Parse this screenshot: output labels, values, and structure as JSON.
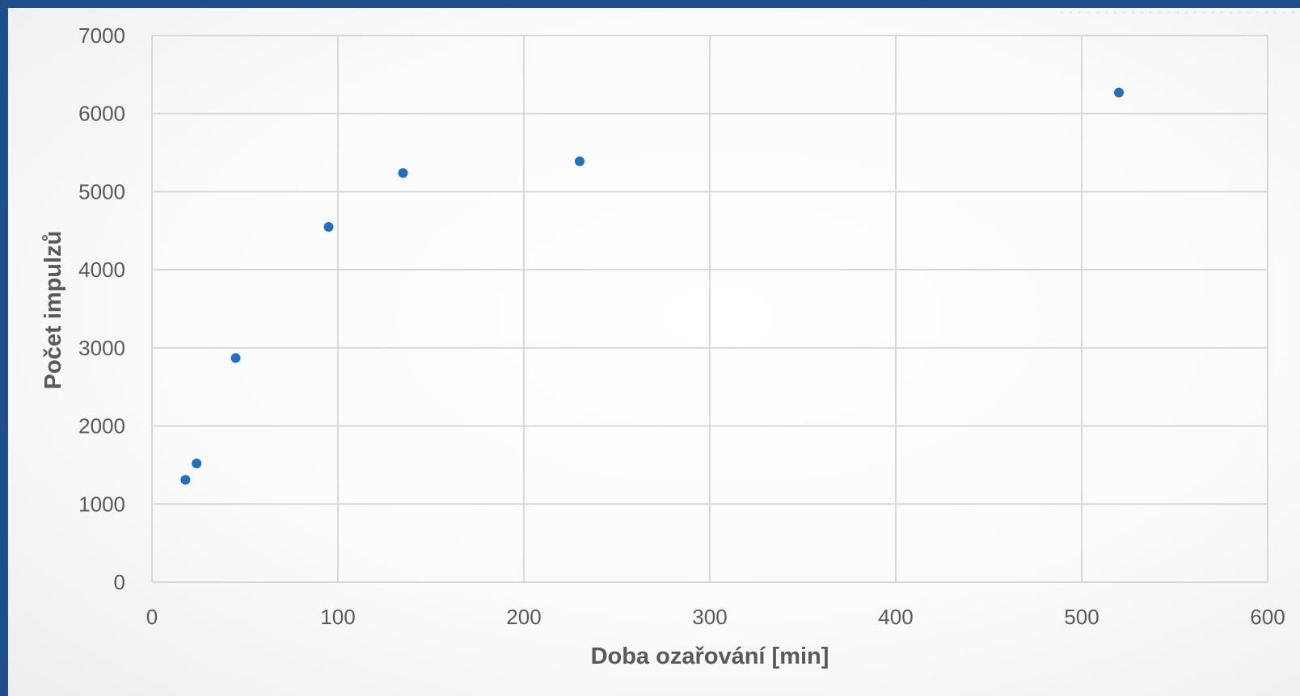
{
  "chart_data": {
    "type": "scatter",
    "xlabel": "Doba ozařování [min]",
    "ylabel": "Počet impulzů",
    "xlim": [
      0,
      600
    ],
    "ylim": [
      0,
      7000
    ],
    "x_ticks": [
      "0",
      "100",
      "200",
      "300",
      "400",
      "500",
      "600"
    ],
    "y_ticks": [
      "0",
      "1000",
      "2000",
      "3000",
      "4000",
      "5000",
      "6000",
      "7000"
    ],
    "grid": true,
    "legend": "none",
    "marker_color": "#1f6fc5",
    "series": [
      {
        "x": [
          18,
          24,
          45,
          95,
          135,
          230,
          520
        ],
        "y": [
          1310,
          1520,
          2870,
          4550,
          5240,
          5390,
          6270
        ]
      }
    ]
  }
}
